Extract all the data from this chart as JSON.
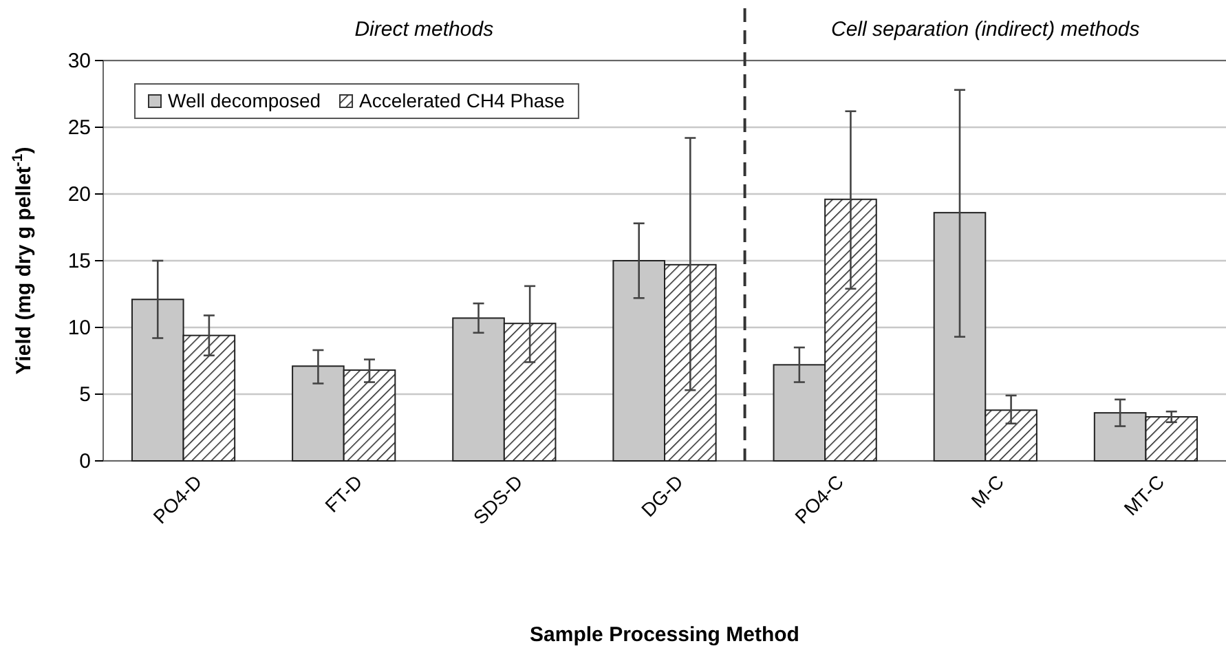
{
  "chart_data": {
    "type": "bar",
    "categories": [
      "PO4-D",
      "FT-D",
      "SDS-D",
      "DG-D",
      "PO4-C",
      "M-C",
      "MT-C"
    ],
    "series": [
      {
        "name": "Well decomposed",
        "color": "#c8c8c8",
        "values": [
          12.1,
          7.1,
          10.7,
          15.0,
          7.2,
          18.6,
          3.6
        ],
        "errors": [
          [
            9.2,
            15.0
          ],
          [
            5.8,
            8.3
          ],
          [
            9.6,
            11.8
          ],
          [
            12.2,
            17.8
          ],
          [
            5.9,
            8.5
          ],
          [
            9.3,
            27.8
          ],
          [
            2.6,
            4.6
          ]
        ]
      },
      {
        "name": "Accelerated CH4 Phase",
        "color": "#222222",
        "values": [
          9.4,
          6.8,
          10.3,
          14.7,
          19.6,
          3.8,
          3.3
        ],
        "errors": [
          [
            7.9,
            10.9
          ],
          [
            5.9,
            7.6
          ],
          [
            7.4,
            13.1
          ],
          [
            5.3,
            24.2
          ],
          [
            12.9,
            26.2
          ],
          [
            2.8,
            4.9
          ],
          [
            2.9,
            3.7
          ]
        ]
      }
    ],
    "xlabel": "Sample Processing Method",
    "ylabel": "Yield (mg dry g pellet$^{-1}$)",
    "ylim": [
      0,
      30
    ],
    "yticks": [
      0,
      5,
      10,
      15,
      20,
      25,
      30
    ],
    "grid": "y",
    "legend": "top left",
    "annotations": [
      "Direct methods",
      "Cell separation (indirect) methods"
    ]
  }
}
